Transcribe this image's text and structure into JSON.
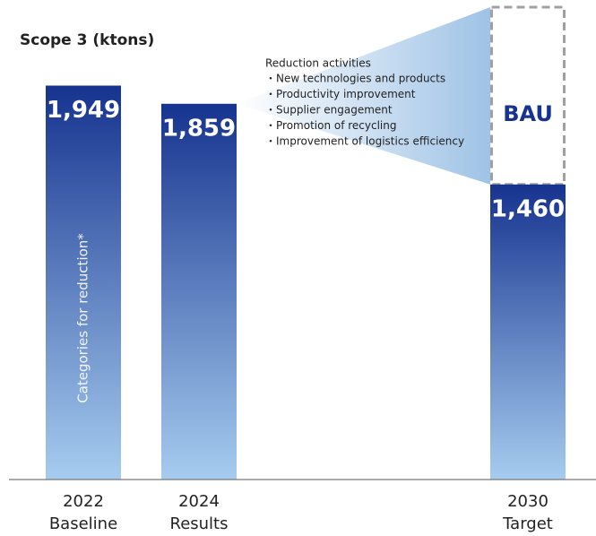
{
  "chart_data": {
    "type": "bar",
    "title": "Scope 3 (ktons)",
    "categories": [
      "2022",
      "2024",
      "2030"
    ],
    "category_sublabels": [
      "Baseline",
      "Results",
      "Target"
    ],
    "values": [
      1949,
      1859,
      1460
    ],
    "value_labels": [
      "1,949",
      "1,859",
      "1,460"
    ],
    "ylim": [
      0,
      2000
    ],
    "colors": [
      "#16338f",
      "#a6ccef"
    ],
    "bau_label": "BAU",
    "vertical_label": "Categories for reduction*",
    "reduction_title": "Reduction activities",
    "reduction_items": [
      "・New technologies and products",
      "・Productivity improvement",
      "・Supplier engagement",
      "・Promotion of recycling",
      "・Improvement of logistics efficiency"
    ]
  }
}
